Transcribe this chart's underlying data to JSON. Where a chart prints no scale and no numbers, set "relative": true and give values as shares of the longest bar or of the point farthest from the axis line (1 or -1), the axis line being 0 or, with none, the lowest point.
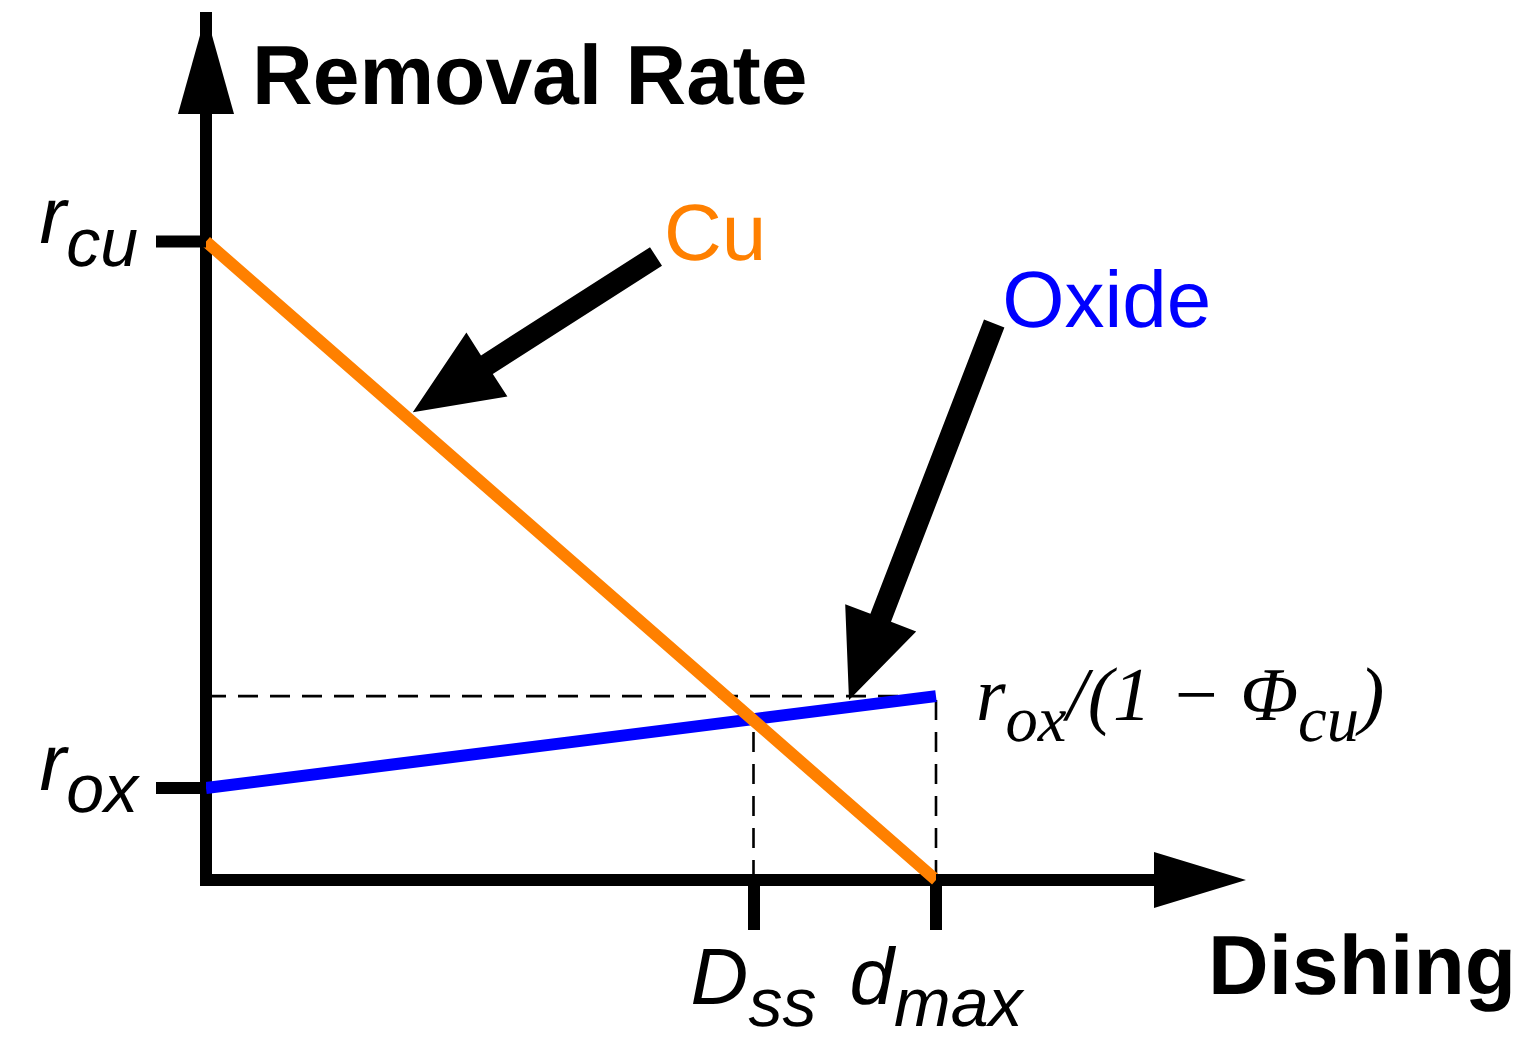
{
  "chart_data": {
    "type": "line",
    "xlabel": "Dishing",
    "ylabel": "Removal Rate",
    "relative": true,
    "categories": [
      null,
      null,
      null,
      "D$_{ss}$",
      "d$_{max}$"
    ],
    "series": [
      {
        "name": "Cu",
        "color": "#ff8000",
        "values": [
          1,
          0.75,
          0.5,
          0.25,
          0
        ]
      },
      {
        "name": "Oxide",
        "color": "#0000ff",
        "values": [
          0.144,
          0.18,
          0.216,
          0.252,
          0.288
        ]
      }
    ],
    "ref_lines": [
      {
        "axis": "y",
        "value": 0.288,
        "label": "r$_{ox}$/(1 − Φ$_{cu}$)",
        "color": "#000000",
        "line_style": "dashed"
      },
      {
        "axis": "x",
        "value": "D$_{ss}$",
        "color": "#000000",
        "line_style": "dashed"
      },
      {
        "axis": "x",
        "value": "d$_{max}$",
        "color": "#000000",
        "line_style": "dashed"
      }
    ],
    "annotations": [
      "r$_{cu}$",
      "r$_{ox}$"
    ],
    "grid": false,
    "legend": false,
    "marker": "none"
  }
}
